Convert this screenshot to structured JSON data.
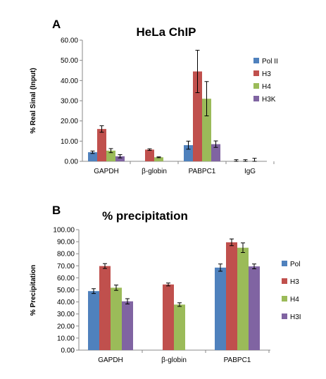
{
  "chart_data": [
    {
      "panel": "A",
      "type": "bar",
      "title": "HeLa ChIP",
      "xlabel": "",
      "ylabel": "% Real Sinal (Input)",
      "ylim": [
        0,
        60
      ],
      "yticks": [
        "0.00",
        "10.00",
        "20.00",
        "30.00",
        "40.00",
        "50.00",
        "60.00"
      ],
      "categories": [
        "GAPDH",
        "β-globin",
        "PABPC1",
        "IgG"
      ],
      "legend_position": "right",
      "grid": false,
      "series": [
        {
          "name": "Pol II",
          "color": "#4F81BD",
          "values": [
            4.5,
            null,
            8.0,
            0.0
          ],
          "errors": [
            0.6,
            null,
            2.0,
            0.8
          ]
        },
        {
          "name": "H3",
          "color": "#C0504D",
          "values": [
            16.0,
            5.8,
            44.5,
            0.0
          ],
          "errors": [
            1.6,
            0.4,
            10.5,
            0.8
          ]
        },
        {
          "name": "H4",
          "color": "#9BBB59",
          "values": [
            5.3,
            2.0,
            31.0,
            0.0
          ],
          "errors": [
            1.0,
            0.2,
            8.5,
            1.5
          ]
        },
        {
          "name": "H3K",
          "color": "#8064A2",
          "values": [
            2.5,
            null,
            8.5,
            null
          ],
          "errors": [
            0.8,
            null,
            1.6,
            null
          ]
        }
      ]
    },
    {
      "panel": "B",
      "type": "bar",
      "title": "% precipitation",
      "xlabel": "",
      "ylabel": "% Precipitation",
      "ylim": [
        0,
        100
      ],
      "yticks": [
        "0.00",
        "10.00",
        "20.00",
        "30.00",
        "40.00",
        "50.00",
        "60.00",
        "70.00",
        "80.00",
        "90.00",
        "100.00"
      ],
      "categories": [
        "GAPDH",
        "β-globin",
        "PABPC1"
      ],
      "legend_position": "right",
      "grid": false,
      "series": [
        {
          "name": "Pol",
          "color": "#4F81BD",
          "values": [
            49.0,
            null,
            68.5
          ],
          "errors": [
            2.0,
            null,
            3.0
          ]
        },
        {
          "name": "H3",
          "color": "#C0504D",
          "values": [
            69.8,
            54.5,
            89.5
          ],
          "errors": [
            2.0,
            1.2,
            2.8
          ]
        },
        {
          "name": "H4",
          "color": "#9BBB59",
          "values": [
            51.8,
            37.8,
            85.0
          ],
          "errors": [
            2.2,
            1.5,
            4.0
          ]
        },
        {
          "name": "H3I",
          "color": "#8064A2",
          "values": [
            40.5,
            null,
            69.5
          ],
          "errors": [
            2.2,
            null,
            2.0
          ]
        }
      ]
    }
  ]
}
